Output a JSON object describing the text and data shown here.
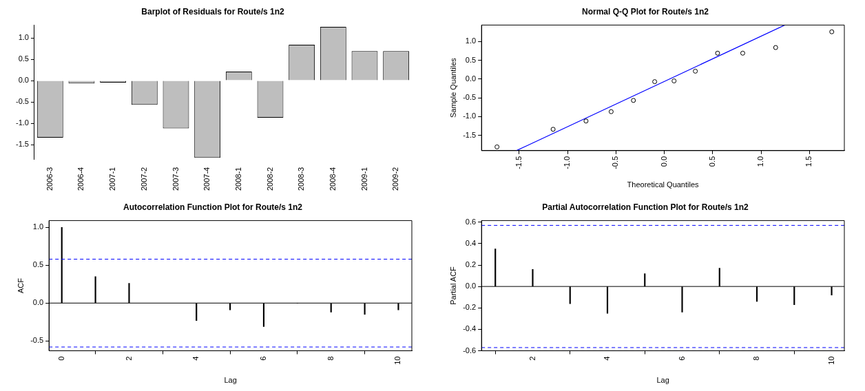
{
  "chart_data": [
    {
      "type": "bar",
      "title": "Barplot of Residuals for Route/s 1n2",
      "categories": [
        "2006-3",
        "2006-4",
        "2007-1",
        "2007-2",
        "2007-3",
        "2007-4",
        "2008-1",
        "2008-2",
        "2008-3",
        "2008-4",
        "2009-1",
        "2009-2"
      ],
      "values": [
        -1.34,
        -0.07,
        -0.05,
        -0.57,
        -1.12,
        -1.81,
        0.21,
        -0.87,
        0.84,
        1.26,
        0.69,
        0.69
      ],
      "color": "#bebebe",
      "ylim": [
        -1.85,
        1.3
      ],
      "yticks": [
        -1.5,
        {
          "value": -1,
          "label": "-1.0"
        },
        -0.5,
        {
          "value": 0,
          "label": "0.0"
        },
        0.5,
        {
          "value": 1,
          "label": "1.0"
        }
      ],
      "grid": false
    },
    {
      "type": "scatter",
      "title": "Normal Q-Q Plot for Route/s 1n2",
      "xlabel": "Theoretical Quantiles",
      "ylabel": "Sample Quantiles",
      "xlim": [
        -1.89,
        1.86
      ],
      "xticks": [
        -1.5,
        {
          "value": -1,
          "label": "-1.0"
        },
        -0.5,
        {
          "value": 0,
          "label": "0.0"
        },
        0.5,
        {
          "value": 1,
          "label": "1.0"
        },
        1.5
      ],
      "ylim": [
        -1.91,
        1.44
      ],
      "yticks": [
        -1.5,
        {
          "value": -1,
          "label": "-1.0"
        },
        -0.5,
        {
          "value": 0,
          "label": "0.0"
        },
        0.5,
        {
          "value": 1,
          "label": "1.0"
        }
      ],
      "grid": false,
      "marker": "circle",
      "series": [
        {
          "type": "scatter",
          "color": "#000000",
          "x": [
            -1.73,
            -1.15,
            -0.81,
            -0.55,
            -0.32,
            -0.1,
            0.1,
            0.32,
            0.55,
            0.81,
            1.15,
            1.73
          ],
          "values": [
            -1.81,
            -1.34,
            -1.12,
            -0.87,
            -0.57,
            -0.07,
            -0.05,
            0.21,
            0.69,
            0.69,
            0.84,
            1.26
          ]
        },
        {
          "type": "line",
          "color": "#0000ff",
          "marker": "none",
          "x": [
            -1.53,
            1.245
          ],
          "values": [
            -1.91,
            1.44
          ]
        }
      ]
    },
    {
      "type": "bar",
      "title": "Autocorrelation Function Plot for Route/s 1n2",
      "xlabel": "Lag",
      "ylabel": "ACF",
      "x": [
        0,
        1,
        2,
        3,
        4,
        5,
        6,
        7,
        8,
        9,
        10
      ],
      "values": [
        1.0,
        0.35,
        0.26,
        null,
        -0.23,
        -0.09,
        -0.31,
        0.0,
        -0.12,
        -0.15,
        -0.09
      ],
      "color": "#000000",
      "xlim": [
        -0.38,
        10.4
      ],
      "xticks": [
        0,
        2,
        4,
        6,
        8,
        10
      ],
      "ylim": [
        -0.63,
        1.09
      ],
      "yticks": [
        -0.5,
        {
          "value": 0,
          "label": "0.0"
        },
        0.5,
        {
          "value": 1,
          "label": "1.0"
        }
      ],
      "grid": false,
      "ref_lines": [
        {
          "axis": "y",
          "value": 0,
          "color": "#000000",
          "line_style": "solid"
        },
        {
          "axis": "y",
          "value": 0.58,
          "color": "#0000ff",
          "line_style": "dashed"
        },
        {
          "axis": "y",
          "value": -0.58,
          "color": "#0000ff",
          "line_style": "dashed"
        }
      ]
    },
    {
      "type": "bar",
      "title": "Partial Autocorrelation Function Plot for Route/s 1n2",
      "xlabel": "Lag",
      "ylabel": "Partial ACF",
      "x": [
        1,
        2,
        3,
        4,
        5,
        6,
        7,
        8,
        9,
        10
      ],
      "values": [
        0.35,
        0.16,
        -0.16,
        -0.25,
        0.12,
        -0.24,
        0.17,
        -0.14,
        -0.17,
        -0.08
      ],
      "color": "#000000",
      "xlim": [
        0.63,
        10.34
      ],
      "xticks": [
        2,
        4,
        6,
        8,
        10
      ],
      "ylim": [
        -0.6,
        0.615
      ],
      "yticks": [
        -0.6,
        -0.4,
        -0.2,
        {
          "value": 0,
          "label": "0.0"
        },
        0.2,
        0.4,
        0.6
      ],
      "grid": false,
      "ref_lines": [
        {
          "axis": "y",
          "value": 0,
          "color": "#000000",
          "line_style": "solid"
        },
        {
          "axis": "y",
          "value": 0.57,
          "color": "#0000ff",
          "line_style": "dashed"
        },
        {
          "axis": "y",
          "value": -0.57,
          "color": "#0000ff",
          "line_style": "dashed"
        }
      ]
    }
  ]
}
